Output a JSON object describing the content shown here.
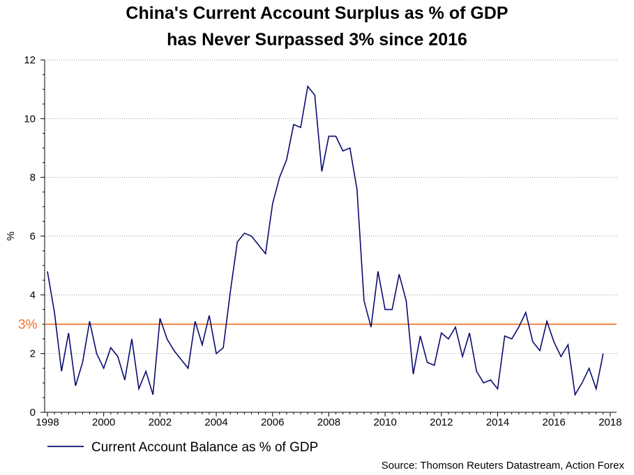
{
  "chart_data": {
    "type": "line",
    "title_line1": "China's Current Account Surplus as % of GDP",
    "title_line2": "has Never Surpassed 3% since 2016",
    "ylabel": "%",
    "xlabel": "",
    "ylim": [
      0,
      12
    ],
    "xlim": [
      1998,
      2018.3
    ],
    "y_ticks": [
      0,
      2,
      4,
      6,
      8,
      10,
      12
    ],
    "x_ticks": [
      1998,
      2000,
      2002,
      2004,
      2006,
      2008,
      2010,
      2012,
      2014,
      2016,
      2018
    ],
    "grid": true,
    "reference_line": {
      "value": 3,
      "label": "3%",
      "color": "#f07025"
    },
    "line_color": "#0a0a6e",
    "legend": {
      "label": "Current Account Balance as % of GDP",
      "placement": "bottom-left"
    },
    "source": "Source: Thomson Reuters Datastream, Action Forex",
    "series": [
      {
        "name": "Current Account Balance as % of GDP",
        "x": [
          1998.0,
          1998.25,
          1998.5,
          1998.75,
          1999.0,
          1999.25,
          1999.5,
          1999.75,
          2000.0,
          2000.25,
          2000.5,
          2000.75,
          2001.0,
          2001.25,
          2001.5,
          2001.75,
          2002.0,
          2002.25,
          2002.5,
          2002.75,
          2003.0,
          2003.25,
          2003.5,
          2003.75,
          2004.0,
          2004.25,
          2004.5,
          2004.75,
          2005.0,
          2005.25,
          2005.5,
          2005.75,
          2006.0,
          2006.25,
          2006.5,
          2006.75,
          2007.0,
          2007.25,
          2007.5,
          2007.75,
          2008.0,
          2008.25,
          2008.5,
          2008.75,
          2009.0,
          2009.25,
          2009.5,
          2009.75,
          2010.0,
          2010.25,
          2010.5,
          2010.75,
          2011.0,
          2011.25,
          2011.5,
          2011.75,
          2012.0,
          2012.25,
          2012.5,
          2012.75,
          2013.0,
          2013.25,
          2013.5,
          2013.75,
          2014.0,
          2014.25,
          2014.5,
          2014.75,
          2015.0,
          2015.25,
          2015.5,
          2015.75,
          2016.0,
          2016.25,
          2016.5,
          2016.75,
          2017.0,
          2017.25,
          2017.5,
          2017.75
        ],
        "values": [
          4.8,
          3.4,
          1.4,
          2.7,
          0.9,
          1.7,
          3.1,
          2.0,
          1.5,
          2.2,
          1.9,
          1.1,
          2.5,
          0.8,
          1.4,
          0.6,
          3.2,
          2.5,
          2.1,
          1.8,
          1.5,
          3.1,
          2.3,
          3.3,
          2.0,
          2.2,
          4.1,
          5.8,
          6.1,
          6.0,
          5.7,
          5.4,
          7.1,
          8.0,
          8.6,
          9.8,
          9.7,
          11.1,
          10.8,
          8.2,
          9.4,
          9.4,
          8.9,
          9.0,
          7.6,
          3.8,
          2.9,
          4.8,
          3.5,
          3.5,
          4.7,
          3.8,
          1.3,
          2.6,
          1.7,
          1.6,
          2.7,
          2.5,
          2.9,
          1.9,
          2.7,
          1.4,
          1.0,
          1.1,
          0.8,
          2.6,
          2.5,
          2.9,
          3.4,
          2.4,
          2.1,
          3.1,
          2.4,
          1.9,
          2.3,
          0.6,
          1.0,
          1.5,
          0.8,
          2.0
        ]
      }
    ]
  }
}
